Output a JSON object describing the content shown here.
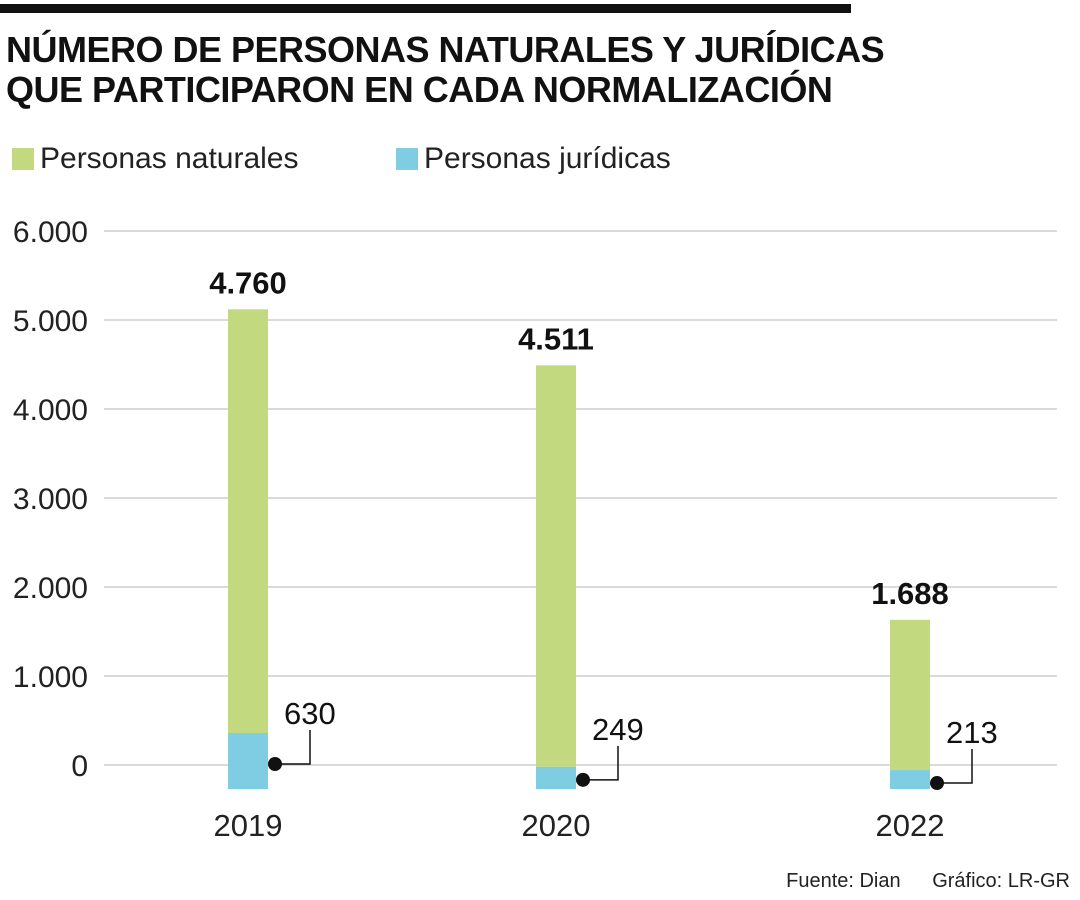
{
  "header": {
    "title_line1": "NÚMERO DE PERSONAS NATURALES Y JURÍDICAS",
    "title_line2": "QUE PARTICIPARON EN CADA NORMALIZACIÓN"
  },
  "legend": [
    {
      "label": "Personas naturales",
      "color": "#c2d97f"
    },
    {
      "label": "Personas jurídicas",
      "color": "#7ecde3"
    }
  ],
  "footer": {
    "source": "Fuente: Dian",
    "credit": "Gráfico: LR-GR"
  },
  "chart_data": {
    "type": "bar",
    "stacked": true,
    "categories": [
      "2019",
      "2020",
      "2022"
    ],
    "series": [
      {
        "name": "Personas jurídicas",
        "values": [
          630,
          249,
          213
        ],
        "color": "#7ecde3"
      },
      {
        "name": "Personas naturales",
        "values": [
          4760,
          4511,
          1688
        ],
        "color": "#c2d97f"
      }
    ],
    "data_labels": {
      "Personas naturales": [
        "4.760",
        "4.511",
        "1.688"
      ],
      "Personas jurídicas": [
        "630",
        "249",
        "213"
      ]
    },
    "yticks": [
      "0",
      "1.000",
      "2.000",
      "3.000",
      "4.000",
      "5.000",
      "6.000"
    ],
    "ylim": [
      0,
      6000
    ],
    "grid": true,
    "legend_position": "top-left"
  }
}
